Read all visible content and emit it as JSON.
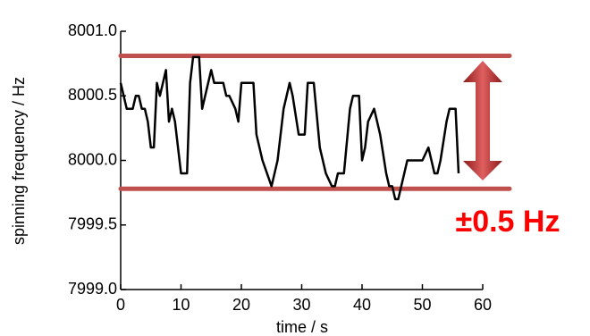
{
  "chart_data": {
    "type": "line",
    "x_label": "time / s",
    "y_label": "spinning frequency / Hz",
    "annotation": "±0.5 Hz",
    "band_lines": [
      8000.81,
      7999.78
    ],
    "band_color": "#c0504d",
    "xlim": [
      0,
      60
    ],
    "xticks": [
      0,
      10,
      20,
      30,
      40,
      50,
      60
    ],
    "ylim": [
      7999.0,
      8001.0
    ],
    "yticks": [
      {
        "value": 7999.0,
        "label": "7999.0"
      },
      {
        "value": 7999.5,
        "label": "7999.5"
      },
      {
        "value": 8000.0,
        "label": "8000.0"
      },
      {
        "value": 8000.5,
        "label": "8000.5"
      },
      {
        "value": 8001.0,
        "label": "8001.0"
      }
    ],
    "series": [
      {
        "color": "#000000",
        "x": [
          0,
          0.5,
          1,
          2,
          2.5,
          3,
          3.5,
          4,
          4.5,
          5,
          5.5,
          6,
          6.5,
          7,
          7.5,
          8,
          8.5,
          9,
          10,
          11,
          11.5,
          12,
          13,
          13.5,
          14,
          15,
          15.5,
          17,
          17.5,
          18,
          19,
          19.5,
          20,
          21,
          22,
          22.5,
          23.5,
          25,
          26,
          27,
          28,
          28.5,
          29.5,
          30.5,
          31,
          32,
          33,
          34,
          35,
          35.5,
          36,
          37,
          38,
          38.5,
          39.5,
          40,
          40.5,
          41,
          42,
          43,
          44,
          44.5,
          45,
          45.5,
          46,
          46.5,
          47,
          47.5,
          49,
          50,
          51,
          52,
          52.5,
          53,
          54,
          54.5,
          55.5,
          56
        ],
        "values": [
          8000.6,
          8000.5,
          8000.4,
          8000.4,
          8000.5,
          8000.5,
          8000.4,
          8000.4,
          8000.3,
          8000.1,
          8000.1,
          8000.6,
          8000.5,
          8000.6,
          8000.7,
          8000.3,
          8000.4,
          8000.3,
          7999.9,
          7999.9,
          8000.6,
          8000.8,
          8000.8,
          8000.4,
          8000.5,
          8000.7,
          8000.6,
          8000.6,
          8000.5,
          8000.5,
          8000.4,
          8000.3,
          8000.6,
          8000.6,
          8000.6,
          8000.2,
          8000.0,
          7999.8,
          8000.0,
          8000.4,
          8000.6,
          8000.5,
          8000.2,
          8000.2,
          8000.6,
          8000.6,
          8000.1,
          7999.9,
          7999.8,
          7999.8,
          7999.9,
          7999.9,
          8000.4,
          8000.5,
          8000.5,
          8000.0,
          8000.1,
          8000.3,
          8000.4,
          8000.2,
          7999.9,
          7999.8,
          7999.8,
          7999.7,
          7999.7,
          7999.8,
          7999.9,
          8000.0,
          8000.0,
          8000.0,
          8000.1,
          7999.9,
          7999.9,
          8000.0,
          8000.3,
          8000.4,
          8000.4,
          7999.9
        ]
      }
    ]
  }
}
